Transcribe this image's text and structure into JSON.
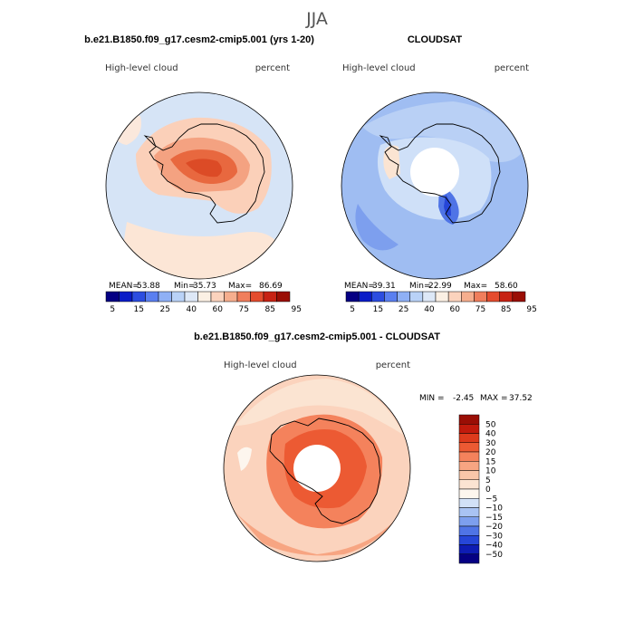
{
  "figure": {
    "season": "JJA"
  },
  "colors": {
    "land_outline": "#000000",
    "frame": "#000000",
    "missing": "#ffffff"
  },
  "chart_data": [
    {
      "type": "heatmap",
      "projection": "south-polar-stereographic",
      "title": "b.e21.B1850.f09_g17.cesm2-cmip5.001 (yrs 1-20)",
      "variable": "High-level cloud",
      "units": "percent",
      "stats": {
        "mean": "53.88",
        "min": "35.73",
        "max": "86.69"
      },
      "stat_labels": {
        "mean": "MEAN=",
        "min": "Min=",
        "max": "Max="
      },
      "legend": {
        "placement": "bottom",
        "levels": [
          "5",
          "15",
          "25",
          "40",
          "60",
          "75",
          "85",
          "95"
        ],
        "colors": [
          "#050083",
          "#0a1cc7",
          "#2c4de0",
          "#5a7ff0",
          "#8fb0f5",
          "#b9d2f7",
          "#dde8f7",
          "#fbf0e4",
          "#fbd3bd",
          "#f6ae8e",
          "#f07e5c",
          "#e44c2e",
          "#c72214",
          "#9a0e05"
        ]
      }
    },
    {
      "type": "heatmap",
      "projection": "south-polar-stereographic",
      "title": "CLOUDSAT",
      "variable": "High-level cloud",
      "units": "percent",
      "stats": {
        "mean": "39.31",
        "min": "22.99",
        "max": "58.60"
      },
      "stat_labels": {
        "mean": "MEAN=",
        "min": "Min=",
        "max": "Max="
      },
      "legend": {
        "placement": "bottom",
        "levels": [
          "5",
          "15",
          "25",
          "40",
          "60",
          "75",
          "85",
          "95"
        ],
        "colors": [
          "#050083",
          "#0a1cc7",
          "#2c4de0",
          "#5a7ff0",
          "#8fb0f5",
          "#b9d2f7",
          "#dde8f7",
          "#fbf0e4",
          "#fbd3bd",
          "#f6ae8e",
          "#f07e5c",
          "#e44c2e",
          "#c72214",
          "#9a0e05"
        ]
      }
    },
    {
      "type": "heatmap",
      "projection": "south-polar-stereographic",
      "title": "b.e21.B1850.f09_g17.cesm2-cmip5.001 - CLOUDSAT",
      "variable": "High-level cloud",
      "units": "percent",
      "stats": {
        "min": "-2.45",
        "max": "37.52"
      },
      "stat_labels": {
        "min": "MIN =",
        "max": "MAX ="
      },
      "legend": {
        "placement": "right",
        "levels": [
          "50",
          "40",
          "30",
          "20",
          "15",
          "10",
          "5",
          "0",
          "−5",
          "−10",
          "−15",
          "−20",
          "−30",
          "−40",
          "−50"
        ],
        "colors": [
          "#9a0e05",
          "#c11a0c",
          "#dd3a1c",
          "#ec5a33",
          "#f4825c",
          "#f7a582",
          "#f9c6a9",
          "#fbe4d2",
          "#fdf6ee",
          "#d2e1f7",
          "#a9c3f3",
          "#7d9fee",
          "#4f74e6",
          "#2646d8",
          "#0e1cb4",
          "#050083"
        ]
      }
    }
  ]
}
